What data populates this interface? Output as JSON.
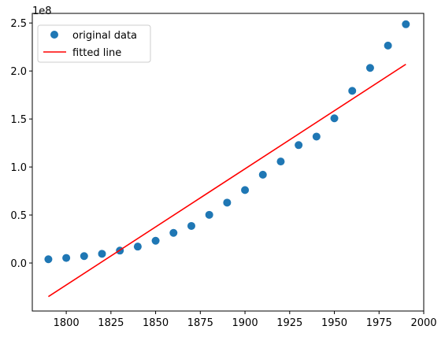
{
  "chart_data": {
    "type": "scatter",
    "title": "",
    "xlabel": "",
    "ylabel": "",
    "y_offset_label": "1e8",
    "xlim": [
      1781,
      2000
    ],
    "ylim": [
      -50000000,
      260000000
    ],
    "x_ticks": [
      1800,
      1825,
      1850,
      1875,
      1900,
      1925,
      1950,
      1975,
      2000
    ],
    "x_tick_labels": [
      "1800",
      "1825",
      "1850",
      "1875",
      "1900",
      "1925",
      "1950",
      "1975",
      "2000"
    ],
    "y_ticks": [
      0,
      50000000,
      100000000,
      150000000,
      200000000,
      250000000
    ],
    "y_tick_labels": [
      "0.0",
      "0.5",
      "1.0",
      "1.5",
      "2.0",
      "2.5"
    ],
    "grid": false,
    "legend_position": "top-left",
    "series": [
      {
        "name": "original data",
        "kind": "points",
        "color": "#1f77b4",
        "x": [
          1790,
          1800,
          1810,
          1820,
          1830,
          1840,
          1850,
          1860,
          1870,
          1880,
          1890,
          1900,
          1910,
          1920,
          1930,
          1940,
          1950,
          1960,
          1970,
          1980,
          1990
        ],
        "y": [
          3900000,
          5300000,
          7200000,
          9600000,
          12900000,
          17100000,
          23200000,
          31400000,
          38600000,
          50200000,
          62900000,
          76000000,
          92000000,
          105700000,
          122800000,
          131700000,
          150700000,
          179300000,
          203200000,
          226500000,
          248700000
        ]
      },
      {
        "name": "fitted line",
        "kind": "line",
        "color": "#ff0000",
        "x": [
          1790,
          1990
        ],
        "y": [
          -35000000,
          207000000
        ]
      }
    ]
  }
}
